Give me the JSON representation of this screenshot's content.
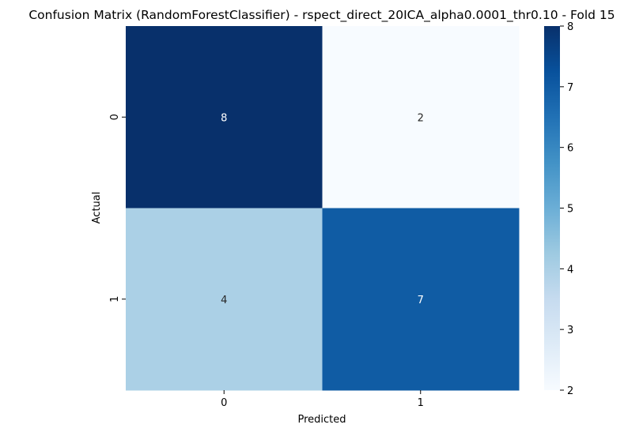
{
  "chart_data": {
    "type": "heatmap",
    "title": "Confusion Matrix (RandomForestClassifier) - rspect_direct_20ICA_alpha0.0001_thr0.10 - Fold 15",
    "xlabel": "Predicted",
    "ylabel": "Actual",
    "x_categories": [
      "0",
      "1"
    ],
    "y_categories": [
      "0",
      "1"
    ],
    "values": [
      [
        8,
        2
      ],
      [
        4,
        7
      ]
    ],
    "cell_labels": [
      [
        "8",
        "2"
      ],
      [
        "4",
        "7"
      ]
    ],
    "colormap": "Blues",
    "colorbar": {
      "range": [
        2,
        8
      ],
      "ticks": [
        "2",
        "3",
        "4",
        "5",
        "6",
        "7",
        "8"
      ],
      "placement": "right"
    }
  }
}
